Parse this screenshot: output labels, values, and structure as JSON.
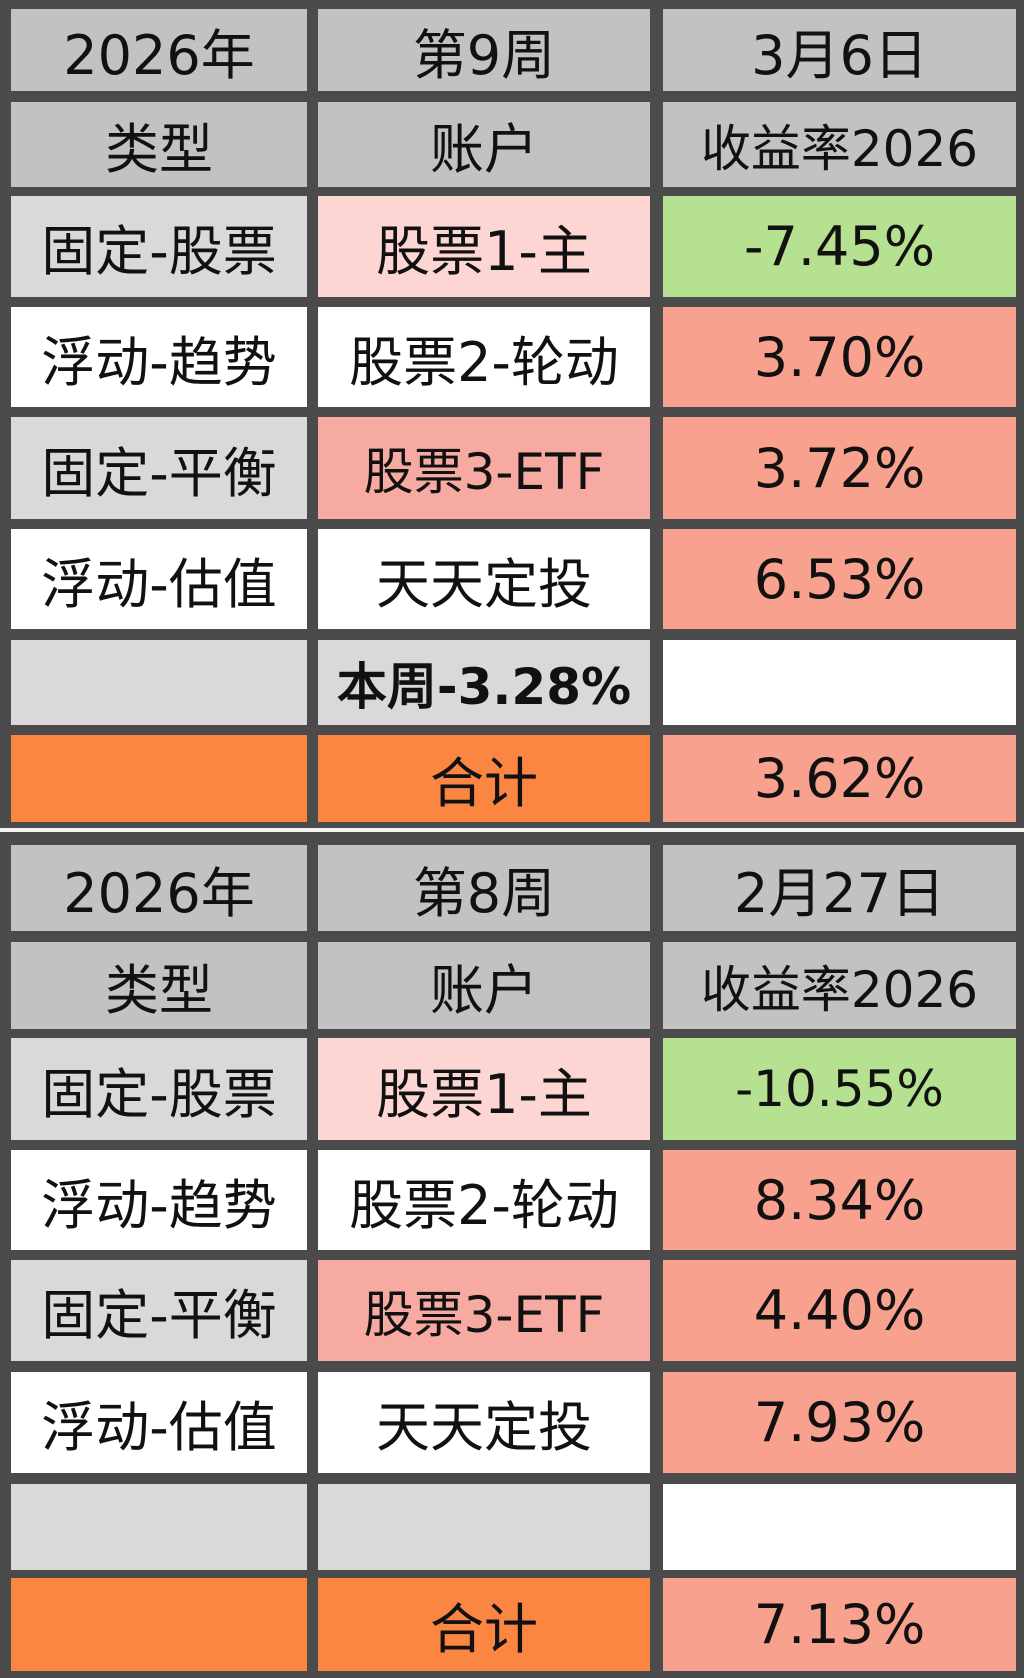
{
  "colors": {
    "header": "#c2c2c2",
    "gray": "#d9d9d9",
    "white": "#ffffff",
    "pink": "#fdd6d4",
    "salmon": "#f6aaa2",
    "green": "#b6e190",
    "red": "#f8a18f",
    "orange": "#fb8641"
  },
  "tables": [
    {
      "rows": [
        {
          "cells": [
            {
              "text": "2026年",
              "fill": "header"
            },
            {
              "text": "第9周",
              "fill": "header"
            },
            {
              "text": "3月6日",
              "fill": "header"
            }
          ]
        },
        {
          "cells": [
            {
              "text": "类型",
              "fill": "header"
            },
            {
              "text": "账户",
              "fill": "header"
            },
            {
              "text": "收益率2026",
              "fill": "header"
            }
          ]
        },
        {
          "cells": [
            {
              "text": "固定-股票",
              "fill": "gray"
            },
            {
              "text": "股票1-主",
              "fill": "pink"
            },
            {
              "text": "-7.45%",
              "fill": "green"
            }
          ]
        },
        {
          "cells": [
            {
              "text": "浮动-趋势",
              "fill": "white"
            },
            {
              "text": "股票2-轮动",
              "fill": "white"
            },
            {
              "text": "3.70%",
              "fill": "red"
            }
          ]
        },
        {
          "cells": [
            {
              "text": "固定-平衡",
              "fill": "gray"
            },
            {
              "text": "股票3-ETF",
              "fill": "salmon"
            },
            {
              "text": "3.72%",
              "fill": "red"
            }
          ]
        },
        {
          "cells": [
            {
              "text": "浮动-估值",
              "fill": "white"
            },
            {
              "text": "天天定投",
              "fill": "white"
            },
            {
              "text": "6.53%",
              "fill": "red"
            }
          ]
        },
        {
          "cells": [
            {
              "text": "",
              "fill": "gray"
            },
            {
              "text": "本周-3.28%",
              "fill": "gray",
              "bold": true
            },
            {
              "text": "",
              "fill": "white"
            }
          ]
        },
        {
          "cells": [
            {
              "text": "",
              "fill": "orange"
            },
            {
              "text": "合计",
              "fill": "orange"
            },
            {
              "text": "3.62%",
              "fill": "red"
            }
          ]
        }
      ]
    },
    {
      "rows": [
        {
          "cells": [
            {
              "text": "2026年",
              "fill": "header"
            },
            {
              "text": "第8周",
              "fill": "header"
            },
            {
              "text": "2月27日",
              "fill": "header"
            }
          ]
        },
        {
          "cells": [
            {
              "text": "类型",
              "fill": "header"
            },
            {
              "text": "账户",
              "fill": "header"
            },
            {
              "text": "收益率2026",
              "fill": "header"
            }
          ]
        },
        {
          "cells": [
            {
              "text": "固定-股票",
              "fill": "gray"
            },
            {
              "text": "股票1-主",
              "fill": "pink"
            },
            {
              "text": "-10.55%",
              "fill": "green"
            }
          ]
        },
        {
          "cells": [
            {
              "text": "浮动-趋势",
              "fill": "white"
            },
            {
              "text": "股票2-轮动",
              "fill": "white"
            },
            {
              "text": "8.34%",
              "fill": "red"
            }
          ]
        },
        {
          "cells": [
            {
              "text": "固定-平衡",
              "fill": "gray"
            },
            {
              "text": "股票3-ETF",
              "fill": "salmon"
            },
            {
              "text": "4.40%",
              "fill": "red"
            }
          ]
        },
        {
          "cells": [
            {
              "text": "浮动-估值",
              "fill": "white"
            },
            {
              "text": "天天定投",
              "fill": "white"
            },
            {
              "text": "7.93%",
              "fill": "red"
            }
          ]
        },
        {
          "cells": [
            {
              "text": "",
              "fill": "gray"
            },
            {
              "text": "",
              "fill": "gray"
            },
            {
              "text": "",
              "fill": "white"
            }
          ]
        },
        {
          "cells": [
            {
              "text": "",
              "fill": "orange"
            },
            {
              "text": "合计",
              "fill": "orange"
            },
            {
              "text": "7.13%",
              "fill": "red"
            }
          ]
        }
      ]
    }
  ]
}
